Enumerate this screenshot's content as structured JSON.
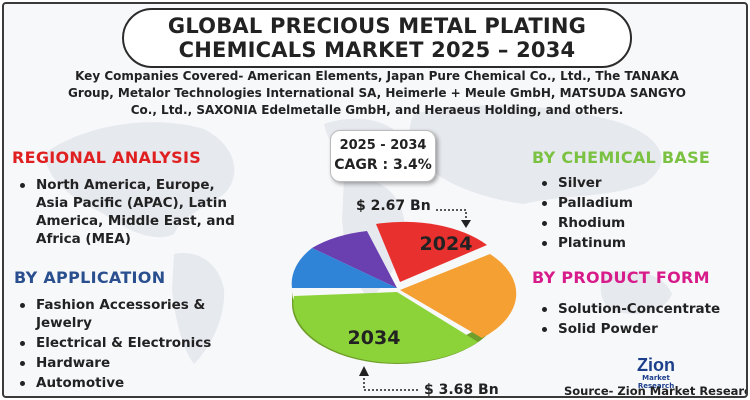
{
  "title": {
    "line1": "GLOBAL PRECIOUS METAL PLATING",
    "line2": "CHEMICALS MARKET 2025 – 2034"
  },
  "companies": "Key Companies Covered- American Elements, Japan Pure Chemical Co., Ltd., The TANAKA Group, Metalor Technologies International SA, Heimerle + Meule GmbH, MATSUDA SANGYO Co., Ltd., SAXONIA Edelmetalle GmbH, and Heraeus Holding, and others.",
  "cagr": {
    "period": "2025 - 2034",
    "value": "CAGR : 3.4%"
  },
  "regional": {
    "heading": "REGIONAL ANALYSIS",
    "items": [
      "North America, Europe, Asia Pacific (APAC), Latin America, Middle East, and Africa (MEA)"
    ]
  },
  "application": {
    "heading": "BY APPLICATION",
    "items": [
      "Fashion Accessories & Jewelry",
      "Electrical & Electronics",
      "Hardware",
      "Automotive"
    ]
  },
  "chemical_base": {
    "heading": "BY CHEMICAL BASE",
    "items": [
      "Silver",
      "Palladium",
      "Rhodium",
      "Platinum"
    ]
  },
  "product_form": {
    "heading": "BY PRODUCT FORM",
    "items": [
      "Solution-Concentrate",
      "Solid Powder"
    ]
  },
  "pie": {
    "label_2024": "2024",
    "label_2034": "2034",
    "amount_2024": "$ 2.67 Bn",
    "amount_2034": "$ 3.68 Bn"
  },
  "logo": {
    "main": "Zion",
    "sub": "Market Research"
  },
  "source": "Source- Zion Market Research",
  "colors": {
    "regional": "#e02020",
    "application": "#2a4f8f",
    "chemical_base": "#7cc242",
    "product_form": "#d81b8a",
    "slice_red": "#e8312f",
    "slice_orange": "#f5a033",
    "slice_green": "#8cd33a",
    "slice_blue": "#2f84d8",
    "slice_purple": "#6a3fb0"
  }
}
